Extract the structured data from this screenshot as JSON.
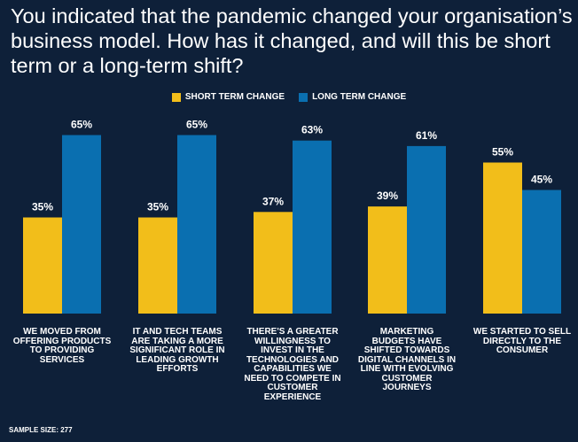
{
  "title": "You indicated that the pandemic changed your organisation’s business model. How has it changed, and will this be short term or a long-term shift?",
  "sample_size": "SAMPLE SIZE: 277",
  "colors": {
    "background": "#0e2039",
    "short": "#f2be1a",
    "long": "#0a6fb0"
  },
  "chart_data": {
    "type": "bar",
    "title": "You indicated that the pandemic changed your organisation’s business model. How has it changed, and will this be short term or a long-term shift?",
    "categories": [
      "WE MOVED FROM OFFERING PRODUCTS TO PROVIDING SERVICES",
      "IT AND TECH TEAMS ARE TAKING A MORE SIGNIFICANT ROLE IN LEADING GROWTH EFFORTS",
      "THERE'S A GREATER WILLINGNESS TO INVEST IN THE TECHNOLOGIES AND CAPABILITIES WE NEED TO COMPETE IN CUSTOMER EXPERIENCE",
      "MARKETING BUDGETS HAVE SHIFTED TOWARDS DIGITAL CHANNELS IN LINE WITH EVOLVING CUSTOMER JOURNEYS",
      "WE STARTED TO SELL DIRECTLY TO THE CONSUMER"
    ],
    "series": [
      {
        "name": "SHORT TERM CHANGE",
        "values": [
          35,
          35,
          37,
          39,
          55
        ],
        "labels": [
          "35%",
          "35%",
          "37%",
          "39%",
          "55%"
        ]
      },
      {
        "name": "LONG TERM CHANGE",
        "values": [
          65,
          65,
          63,
          61,
          45
        ],
        "labels": [
          "65%",
          "65%",
          "63%",
          "61%",
          "45%"
        ]
      }
    ],
    "ylim": [
      0,
      100
    ],
    "xlabel": "",
    "ylabel": "",
    "grid": false,
    "legend": "top-center"
  }
}
